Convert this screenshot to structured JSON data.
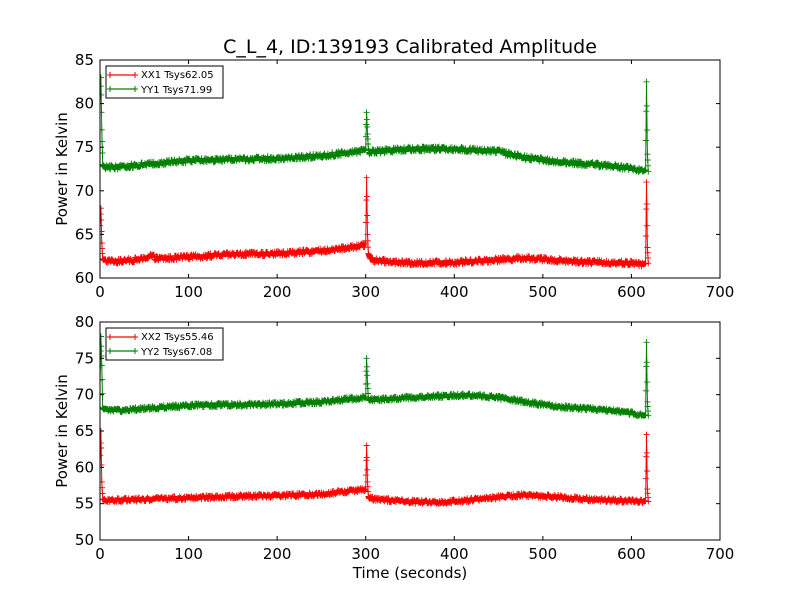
{
  "title": "C_L_4, ID:139193 Calibrated Amplitude",
  "colors": {
    "xx": "#ff0000",
    "yy": "#008000"
  },
  "chart_data": [
    {
      "type": "line",
      "xlabel": "",
      "ylabel": "Power in Kelvin",
      "xlim": [
        0,
        700
      ],
      "ylim": [
        60,
        85
      ],
      "xticks": [
        0,
        100,
        200,
        300,
        400,
        500,
        600,
        700
      ],
      "yticks": [
        60,
        65,
        70,
        75,
        80,
        85
      ],
      "legend_position": "top-left",
      "series": [
        {
          "name": "XX1 Tsys62.05",
          "color": "#ff0000",
          "x": [
            0,
            1,
            2,
            3,
            5,
            20,
            50,
            57,
            65,
            100,
            150,
            200,
            250,
            290,
            300,
            301,
            302,
            303,
            304,
            305,
            310,
            350,
            400,
            450,
            480,
            520,
            560,
            600,
            614,
            616,
            617,
            618,
            619
          ],
          "y": [
            66,
            68,
            64,
            62.2,
            62.0,
            61.9,
            62.2,
            62.6,
            62.2,
            62.4,
            62.7,
            62.8,
            63.1,
            63.6,
            63.8,
            71.5,
            65,
            62.8,
            62.5,
            62.3,
            62.0,
            61.7,
            61.8,
            62.1,
            62.3,
            62.0,
            61.8,
            61.7,
            61.6,
            61.7,
            71,
            63.5,
            61.7
          ]
        },
        {
          "name": "YY1 Tsys71.99",
          "color": "#008000",
          "x": [
            0,
            1,
            2,
            3,
            5,
            20,
            50,
            100,
            150,
            200,
            250,
            290,
            300,
            301,
            302,
            303,
            304,
            305,
            310,
            350,
            400,
            450,
            480,
            520,
            560,
            600,
            614,
            616,
            617,
            618,
            619
          ],
          "y": [
            80,
            83,
            77,
            73,
            72.7,
            72.7,
            73.0,
            73.5,
            73.6,
            73.7,
            74.0,
            74.5,
            74.8,
            79,
            76.5,
            74.8,
            74.2,
            74.5,
            74.5,
            74.8,
            74.8,
            74.5,
            73.8,
            73.3,
            73.0,
            72.6,
            72.3,
            72.4,
            82.5,
            74.2,
            72.2
          ]
        }
      ]
    },
    {
      "type": "line",
      "xlabel": "Time (seconds)",
      "ylabel": "Power in Kelvin",
      "xlim": [
        0,
        700
      ],
      "ylim": [
        50,
        80
      ],
      "xticks": [
        0,
        100,
        200,
        300,
        400,
        500,
        600,
        700
      ],
      "yticks": [
        50,
        55,
        60,
        65,
        70,
        75,
        80
      ],
      "legend_position": "top-left",
      "series": [
        {
          "name": "XX2 Tsys55.46",
          "color": "#ff0000",
          "x": [
            0,
            1,
            2,
            3,
            5,
            20,
            50,
            100,
            150,
            200,
            250,
            270,
            290,
            300,
            301,
            302,
            303,
            304,
            305,
            310,
            350,
            370,
            400,
            450,
            480,
            520,
            560,
            600,
            614,
            616,
            617,
            618,
            619
          ],
          "y": [
            60,
            65,
            58,
            55.6,
            55.5,
            55.5,
            55.6,
            55.8,
            56.0,
            56.1,
            56.3,
            56.6,
            56.8,
            56.9,
            63,
            58,
            56,
            55.7,
            55.8,
            55.6,
            55.3,
            55.2,
            55.3,
            55.9,
            56.2,
            55.9,
            55.5,
            55.4,
            55.3,
            55.4,
            64.5,
            57,
            55.3
          ]
        },
        {
          "name": "YY2 Tsys67.08",
          "color": "#008000",
          "x": [
            0,
            1,
            2,
            3,
            5,
            20,
            50,
            100,
            150,
            200,
            250,
            290,
            300,
            301,
            302,
            303,
            304,
            305,
            310,
            350,
            400,
            420,
            450,
            480,
            520,
            560,
            600,
            614,
            616,
            617,
            618,
            619
          ],
          "y": [
            72,
            78,
            74,
            68.2,
            67.9,
            67.8,
            68.1,
            68.5,
            68.6,
            68.7,
            69.0,
            69.5,
            69.7,
            75,
            71.5,
            69.5,
            69.2,
            69.3,
            69.3,
            69.6,
            69.9,
            69.9,
            69.6,
            69.0,
            68.3,
            68.0,
            67.5,
            67.1,
            67.2,
            77.2,
            69,
            67.1
          ]
        }
      ]
    }
  ]
}
